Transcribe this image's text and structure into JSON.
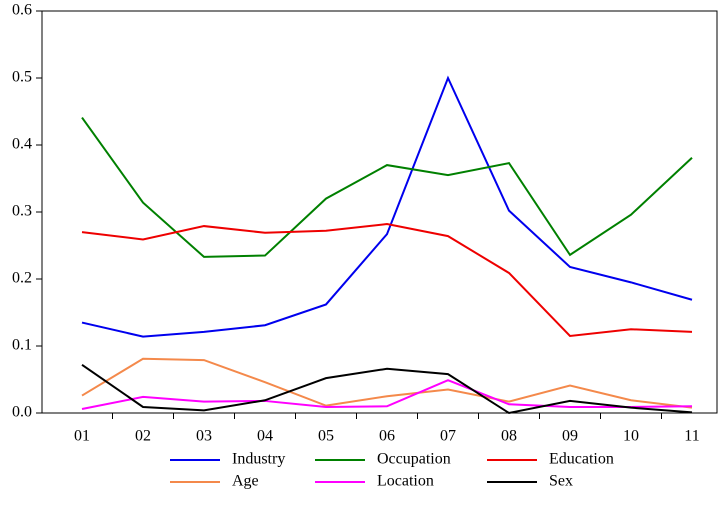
{
  "chart_data": {
    "type": "line",
    "categories": [
      "01",
      "02",
      "03",
      "04",
      "05",
      "06",
      "07",
      "08",
      "09",
      "10",
      "11"
    ],
    "series": [
      {
        "name": "Industry",
        "color": "#0000ee",
        "values": [
          0.135,
          0.114,
          0.121,
          0.131,
          0.162,
          0.267,
          0.5,
          0.302,
          0.218,
          0.195,
          0.169
        ]
      },
      {
        "name": "Occupation",
        "color": "#008000",
        "values": [
          0.441,
          0.314,
          0.233,
          0.235,
          0.32,
          0.37,
          0.355,
          0.373,
          0.236,
          0.296,
          0.381
        ]
      },
      {
        "name": "Education",
        "color": "#ee0000",
        "values": [
          0.27,
          0.259,
          0.279,
          0.269,
          0.272,
          0.282,
          0.264,
          0.209,
          0.115,
          0.125,
          0.121
        ]
      },
      {
        "name": "Age",
        "color": "#f4894b",
        "values": [
          0.026,
          0.081,
          0.079,
          0.046,
          0.011,
          0.025,
          0.035,
          0.017,
          0.041,
          0.019,
          0.008
        ]
      },
      {
        "name": "Location",
        "color": "#ff00ff",
        "values": [
          0.006,
          0.024,
          0.017,
          0.018,
          0.009,
          0.01,
          0.049,
          0.013,
          0.009,
          0.009,
          0.01
        ]
      },
      {
        "name": "Sex",
        "color": "#000000",
        "values": [
          0.072,
          0.009,
          0.004,
          0.019,
          0.052,
          0.066,
          0.058,
          0.0,
          0.018,
          0.008,
          0.001
        ]
      }
    ],
    "ylim": [
      0,
      0.6
    ],
    "yticks": [
      {
        "value": 0,
        "label": "0.0"
      },
      0.1,
      0.2,
      0.3,
      0.4,
      0.5,
      0.6
    ],
    "grid": false,
    "legend": "bottom"
  }
}
